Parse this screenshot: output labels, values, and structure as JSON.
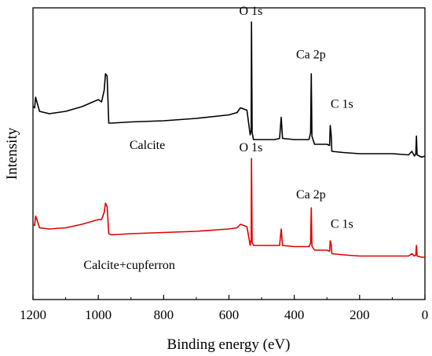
{
  "chart_data": {
    "type": "line",
    "title": "",
    "xlabel": "Binding energy (eV)",
    "ylabel": "Intensity",
    "xlim": [
      1200,
      0
    ],
    "x_reversed": true,
    "x_ticks": [
      1200,
      1000,
      800,
      600,
      400,
      200,
      0
    ],
    "y_ticks_shown": false,
    "grid": false,
    "legend": "none",
    "series": [
      {
        "name": "Calcite",
        "color": "#000000",
        "points": [
          [
            1200,
            72
          ],
          [
            1195,
            73
          ],
          [
            1192,
            64
          ],
          [
            1188,
            68
          ],
          [
            1180,
            76
          ],
          [
            1150,
            78
          ],
          [
            1100,
            76
          ],
          [
            1050,
            72
          ],
          [
            1000,
            66
          ],
          [
            990,
            68
          ],
          [
            982,
            58
          ],
          [
            978,
            44
          ],
          [
            973,
            46
          ],
          [
            968,
            86
          ],
          [
            960,
            86
          ],
          [
            900,
            85
          ],
          [
            800,
            84
          ],
          [
            700,
            82
          ],
          [
            600,
            79
          ],
          [
            575,
            77
          ],
          [
            565,
            73
          ],
          [
            545,
            75
          ],
          [
            535,
            96
          ],
          [
            532,
            92
          ],
          [
            531,
            0
          ],
          [
            529,
            94
          ],
          [
            525,
            100
          ],
          [
            500,
            100
          ],
          [
            460,
            100
          ],
          [
            445,
            99
          ],
          [
            440,
            81
          ],
          [
            436,
            99
          ],
          [
            400,
            100
          ],
          [
            380,
            100
          ],
          [
            355,
            100
          ],
          [
            350,
            94
          ],
          [
            348,
            44
          ],
          [
            346,
            97
          ],
          [
            345,
            98
          ],
          [
            338,
            104
          ],
          [
            300,
            104
          ],
          [
            292,
            105
          ],
          [
            290,
            88
          ],
          [
            287,
            96
          ],
          [
            285,
            110
          ],
          [
            250,
            111
          ],
          [
            200,
            112
          ],
          [
            100,
            112
          ],
          [
            50,
            113
          ],
          [
            40,
            110
          ],
          [
            32,
            114
          ],
          [
            28,
            112
          ],
          [
            26,
            97
          ],
          [
            24,
            113
          ],
          [
            10,
            115
          ],
          [
            0,
            114
          ]
        ]
      },
      {
        "name": "Calcite+cupferron",
        "color": "#e00000",
        "points": [
          [
            1200,
            172
          ],
          [
            1195,
            173
          ],
          [
            1192,
            165
          ],
          [
            1188,
            168
          ],
          [
            1180,
            175
          ],
          [
            1150,
            176
          ],
          [
            1100,
            175
          ],
          [
            1050,
            172
          ],
          [
            1000,
            168
          ],
          [
            990,
            168
          ],
          [
            982,
            162
          ],
          [
            978,
            154
          ],
          [
            973,
            157
          ],
          [
            968,
            180
          ],
          [
            960,
            181
          ],
          [
            900,
            180
          ],
          [
            800,
            179
          ],
          [
            700,
            178
          ],
          [
            600,
            176
          ],
          [
            575,
            175
          ],
          [
            565,
            172
          ],
          [
            545,
            174
          ],
          [
            535,
            190
          ],
          [
            532,
            185
          ],
          [
            531,
            116
          ],
          [
            529,
            187
          ],
          [
            525,
            190
          ],
          [
            500,
            190
          ],
          [
            460,
            190
          ],
          [
            445,
            190
          ],
          [
            440,
            176
          ],
          [
            436,
            190
          ],
          [
            400,
            191
          ],
          [
            380,
            191
          ],
          [
            355,
            191
          ],
          [
            350,
            188
          ],
          [
            348,
            158
          ],
          [
            346,
            190
          ],
          [
            345,
            191
          ],
          [
            338,
            194
          ],
          [
            300,
            194
          ],
          [
            292,
            195
          ],
          [
            290,
            186
          ],
          [
            287,
            189
          ],
          [
            285,
            197
          ],
          [
            250,
            198
          ],
          [
            200,
            199
          ],
          [
            100,
            199
          ],
          [
            50,
            199
          ],
          [
            40,
            197
          ],
          [
            32,
            199
          ],
          [
            28,
            198
          ],
          [
            26,
            190
          ],
          [
            24,
            199
          ],
          [
            10,
            200
          ],
          [
            0,
            200
          ]
        ]
      }
    ],
    "annotations": [
      {
        "text": "O 1s",
        "x": 533,
        "y": -6,
        "anchor": "middle"
      },
      {
        "text": "Ca 2p",
        "x": 349,
        "y": 31,
        "anchor": "middle"
      },
      {
        "text": "C 1s",
        "x": 289,
        "y": 73,
        "anchor": "start"
      },
      {
        "text": "Calcite",
        "x": 850,
        "y": 108,
        "anchor": "middle"
      },
      {
        "text": "O 1s",
        "x": 533,
        "y": 110,
        "anchor": "middle"
      },
      {
        "text": "Ca 2p",
        "x": 349,
        "y": 150,
        "anchor": "middle"
      },
      {
        "text": "C 1s",
        "x": 289,
        "y": 175,
        "anchor": "start"
      },
      {
        "text": "Calcite+cupferron",
        "x": 905,
        "y": 210,
        "anchor": "middle"
      }
    ]
  }
}
